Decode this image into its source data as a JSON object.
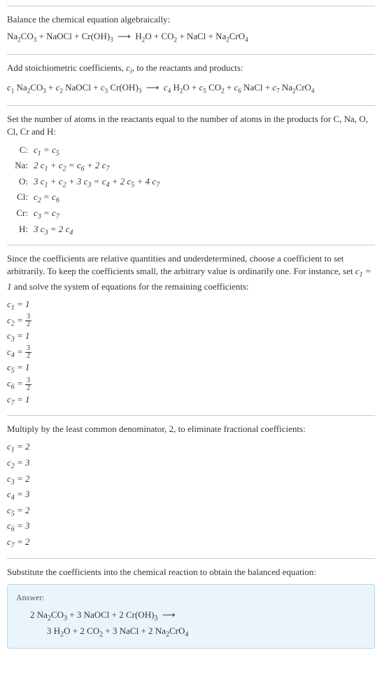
{
  "section1": {
    "line1": "Balance the chemical equation algebraically:",
    "equation": "Na₂CO₃ + NaOCl + Cr(OH)₃  ⟶  H₂O + CO₂ + NaCl + Na₂CrO₄"
  },
  "section2": {
    "line1_part1": "Add stoichiometric coefficients, ",
    "line1_ci": "c",
    "line1_i": "i",
    "line1_part2": ", to the reactants and products:",
    "equation": "c₁ Na₂CO₃ + c₂ NaOCl + c₃ Cr(OH)₃  ⟶  c₄ H₂O + c₅ CO₂ + c₆ NaCl + c₇ Na₂CrO₄"
  },
  "section3": {
    "intro": "Set the number of atoms in the reactants equal to the number of atoms in the products for C, Na, O, Cl, Cr and H:",
    "atoms": [
      {
        "label": "C:",
        "eq": "c₁ = c₅"
      },
      {
        "label": "Na:",
        "eq": "2 c₁ + c₂ = c₆ + 2 c₇"
      },
      {
        "label": "O:",
        "eq": "3 c₁ + c₂ + 3 c₃ = c₄ + 2 c₅ + 4 c₇"
      },
      {
        "label": "Cl:",
        "eq": "c₂ = c₆"
      },
      {
        "label": "Cr:",
        "eq": "c₃ = c₇"
      },
      {
        "label": "H:",
        "eq": "3 c₃ = 2 c₄"
      }
    ]
  },
  "section4": {
    "intro_part1": "Since the coefficients are relative quantities and underdetermined, choose a coefficient to set arbitrarily. To keep the coefficients small, the arbitrary value is ordinarily one. For instance, set ",
    "intro_c1": "c₁ = 1",
    "intro_part2": " and solve the system of equations for the remaining coefficients:",
    "coeffs": [
      {
        "lhs": "c₁",
        "val": "1",
        "frac": false
      },
      {
        "lhs": "c₂",
        "num": "3",
        "den": "2",
        "frac": true
      },
      {
        "lhs": "c₃",
        "val": "1",
        "frac": false
      },
      {
        "lhs": "c₄",
        "num": "3",
        "den": "2",
        "frac": true
      },
      {
        "lhs": "c₅",
        "val": "1",
        "frac": false
      },
      {
        "lhs": "c₆",
        "num": "3",
        "den": "2",
        "frac": true
      },
      {
        "lhs": "c₇",
        "val": "1",
        "frac": false
      }
    ]
  },
  "section5": {
    "intro": "Multiply by the least common denominator, 2, to eliminate fractional coefficients:",
    "coeffs": [
      {
        "lhs": "c₁",
        "val": "2"
      },
      {
        "lhs": "c₂",
        "val": "3"
      },
      {
        "lhs": "c₃",
        "val": "2"
      },
      {
        "lhs": "c₄",
        "val": "3"
      },
      {
        "lhs": "c₅",
        "val": "2"
      },
      {
        "lhs": "c₆",
        "val": "3"
      },
      {
        "lhs": "c₇",
        "val": "2"
      }
    ]
  },
  "section6": {
    "intro": "Substitute the coefficients into the chemical reaction to obtain the balanced equation:",
    "answer_label": "Answer:",
    "answer_line1": "2 Na₂CO₃ + 3 NaOCl + 2 Cr(OH)₃  ⟶",
    "answer_line2": "3 H₂O + 2 CO₂ + 3 NaCl + 2 Na₂CrO₄"
  },
  "colors": {
    "text": "#333333",
    "border": "#cccccc",
    "answer_bg": "#eaf4fb",
    "answer_border": "#b8d4e8",
    "answer_label": "#555555"
  }
}
